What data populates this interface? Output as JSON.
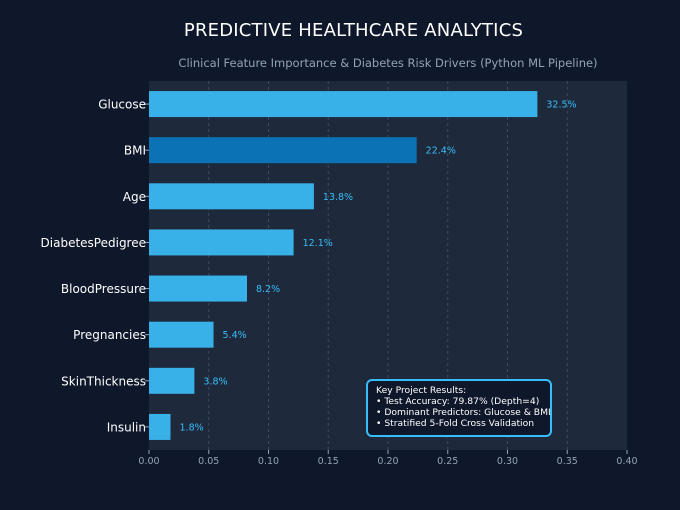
{
  "header": {
    "title": "PREDICTIVE HEALTHCARE ANALYTICS",
    "subtitle": "Clinical Feature Importance & Diabetes Risk Drivers (Python ML Pipeline)"
  },
  "results_box": {
    "heading": "Key Project Results:",
    "lines": [
      "• Test Accuracy: 79.87% (Depth=4)",
      "• Dominant Predictors: Glucose & BMI",
      "• Stratified 5-Fold Cross Validation"
    ]
  },
  "colors": {
    "background": "#0f172a",
    "plot_area": "#1e293b",
    "bar": "#38b0e8",
    "bar_highlight": "#0a72b5",
    "value_label": "#38bdf8",
    "axis_text": "#94a3b8",
    "category_text": "#ffffff"
  },
  "chart_data": {
    "type": "bar",
    "orientation": "horizontal",
    "categories": [
      "Glucose",
      "BMI",
      "Age",
      "DiabetesPedigree",
      "BloodPressure",
      "Pregnancies",
      "SkinThickness",
      "Insulin"
    ],
    "values": [
      0.325,
      0.224,
      0.138,
      0.121,
      0.082,
      0.054,
      0.038,
      0.018
    ],
    "value_labels": [
      "32.5%",
      "22.4%",
      "13.8%",
      "12.1%",
      "8.2%",
      "5.4%",
      "3.8%",
      "1.8%"
    ],
    "highlight_category": "BMI",
    "xlim": [
      0,
      0.4
    ],
    "xticks": [
      "0.00",
      "0.05",
      "0.10",
      "0.15",
      "0.20",
      "0.25",
      "0.30",
      "0.35",
      "0.40"
    ],
    "xlabel": "",
    "ylabel": "",
    "grid": "vertical dashed"
  }
}
